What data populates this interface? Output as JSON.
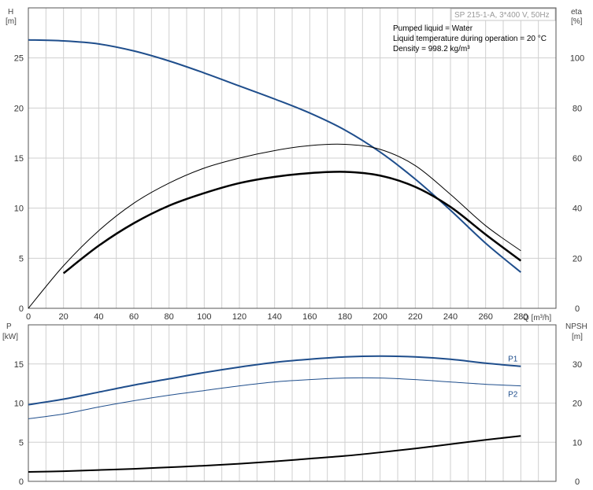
{
  "header": {
    "title": "SP 215-1-A, 3*400 V, 50Hz",
    "info": [
      "Pumped liquid = Water",
      "Liquid temperature during operation = 20 °C",
      "Density = 998.2 kg/m³"
    ]
  },
  "colors": {
    "blue": "#1f4e8c",
    "black": "#000000",
    "grid": "#cfcfcf"
  },
  "chart_data": [
    {
      "type": "line",
      "xlabel": "Q [m³/h]",
      "ylabel": "H",
      "ylabel_unit": "[m]",
      "y2label": "eta",
      "y2label_unit": "[%]",
      "xlim": [
        0,
        300
      ],
      "ylim": [
        0,
        30
      ],
      "y2lim": [
        0,
        120
      ],
      "xticks": [
        0,
        20,
        40,
        60,
        80,
        100,
        120,
        140,
        160,
        180,
        200,
        220,
        240,
        260,
        280
      ],
      "yticks": [
        0,
        5,
        10,
        15,
        20,
        25
      ],
      "y2ticks": [
        0,
        20,
        40,
        60,
        80,
        100
      ],
      "grid": true,
      "series": [
        {
          "axis": "y",
          "color": "#1f4e8c",
          "width": 2,
          "x": [
            0,
            20,
            40,
            60,
            80,
            100,
            120,
            140,
            160,
            180,
            200,
            220,
            240,
            260,
            280
          ],
          "y": [
            26.8,
            26.7,
            26.4,
            25.7,
            24.7,
            23.5,
            22.2,
            20.9,
            19.5,
            17.8,
            15.6,
            12.9,
            9.8,
            6.5,
            3.6
          ]
        },
        {
          "axis": "y2",
          "color": "#000000",
          "width": 1,
          "x": [
            0,
            20,
            40,
            60,
            80,
            100,
            120,
            140,
            160,
            180,
            200,
            220,
            240,
            260,
            280
          ],
          "y": [
            0,
            17,
            31,
            42,
            50,
            56,
            60,
            63,
            65,
            65.5,
            63.5,
            57,
            45.5,
            33,
            23
          ]
        },
        {
          "axis": "y2",
          "color": "#000000",
          "width": 2.5,
          "x": [
            20,
            40,
            60,
            80,
            100,
            120,
            140,
            160,
            180,
            200,
            220,
            240,
            260,
            280
          ],
          "y": [
            14,
            25,
            34,
            41,
            46,
            50,
            52.5,
            54,
            54.5,
            53,
            48.5,
            40.5,
            29.5,
            19
          ]
        }
      ]
    },
    {
      "type": "line",
      "xlabel": "",
      "ylabel": "P",
      "ylabel_unit": "[kW]",
      "y2label": "NPSH",
      "y2label_unit": "[m]",
      "xlim": [
        0,
        300
      ],
      "ylim": [
        0,
        20
      ],
      "y2lim": [
        0,
        40
      ],
      "yticks": [
        0,
        5,
        10,
        15
      ],
      "y2ticks": [
        0,
        10,
        20,
        30
      ],
      "grid": true,
      "series": [
        {
          "name": "P1",
          "axis": "y",
          "color": "#1f4e8c",
          "width": 2,
          "x": [
            0,
            20,
            40,
            60,
            80,
            100,
            120,
            140,
            160,
            180,
            200,
            220,
            240,
            260,
            280
          ],
          "y": [
            9.8,
            10.5,
            11.4,
            12.3,
            13.1,
            13.9,
            14.6,
            15.2,
            15.6,
            15.9,
            16.0,
            15.9,
            15.6,
            15.1,
            14.7
          ]
        },
        {
          "name": "P2",
          "axis": "y",
          "color": "#1f4e8c",
          "width": 1,
          "x": [
            0,
            20,
            40,
            60,
            80,
            100,
            120,
            140,
            160,
            180,
            200,
            220,
            240,
            260,
            280
          ],
          "y": [
            8.0,
            8.6,
            9.5,
            10.3,
            11.0,
            11.6,
            12.2,
            12.7,
            13.0,
            13.2,
            13.2,
            13.0,
            12.7,
            12.4,
            12.2
          ]
        },
        {
          "axis": "y2",
          "color": "#000000",
          "width": 2,
          "x": [
            0,
            20,
            40,
            60,
            80,
            100,
            120,
            140,
            160,
            180,
            200,
            220,
            240,
            260,
            280
          ],
          "y": [
            2.4,
            2.6,
            2.9,
            3.2,
            3.6,
            4.0,
            4.5,
            5.1,
            5.8,
            6.5,
            7.4,
            8.4,
            9.5,
            10.6,
            11.6
          ]
        }
      ]
    }
  ]
}
